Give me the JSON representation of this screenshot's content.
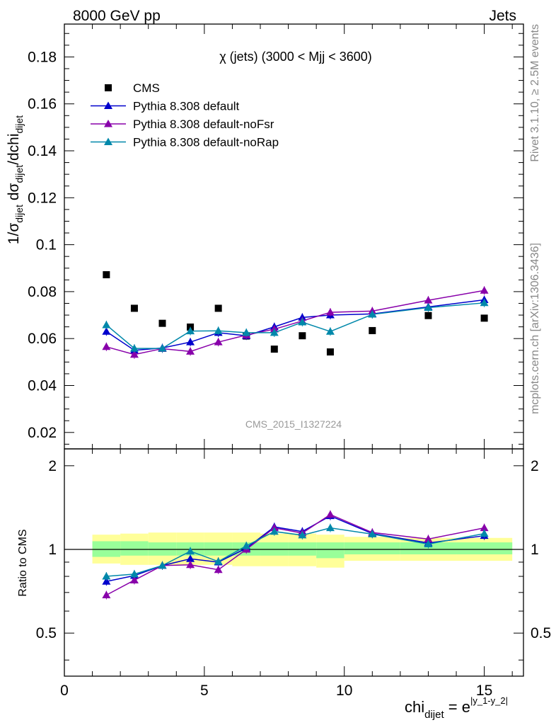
{
  "header": {
    "left": "8000 GeV pp",
    "right": "Jets"
  },
  "side_labels": {
    "rivet": "Rivet 3.1.10, ≥ 2.5M events",
    "mcplots": "mcplots.cern.ch [arXiv:1306.3436]"
  },
  "watermark": "CMS_2015_I1327224",
  "colors": {
    "cms": "#000000",
    "default": "#0000cc",
    "noFsr": "#8800aa",
    "noRap": "#0088aa",
    "band_inner": "#99ff99",
    "band_outer": "#ffff99"
  },
  "chart_data": [
    {
      "type": "scatter",
      "panel": "main",
      "title": "χ (jets) (3000 < Mjj < 3600)",
      "ylabel": "1/σdijet dσdijet/dchidijet",
      "xlim": [
        0,
        16.4
      ],
      "ylim": [
        0.013,
        0.194
      ],
      "yticks": [
        0.02,
        0.04,
        0.06,
        0.08,
        0.1,
        0.12,
        0.14,
        0.16,
        0.18
      ],
      "ytick_labels": [
        "0.02",
        "0.04",
        "0.06",
        "0.08",
        "0.1",
        "0.12",
        "0.14",
        "0.16",
        "0.18"
      ],
      "x": [
        1.5,
        2.5,
        3.5,
        4.5,
        5.5,
        6.5,
        7.5,
        8.5,
        9.5,
        11,
        13,
        15
      ],
      "legend": {
        "placement": "top-left"
      },
      "series": [
        {
          "name": "CMS",
          "key": "cms",
          "marker": "square",
          "values": [
            0.0872,
            0.0729,
            0.0665,
            0.0649,
            0.0729,
            0.0611,
            0.0555,
            0.0612,
            0.0543,
            0.0634,
            0.0698,
            0.0687
          ]
        },
        {
          "name": "Pythia 8.308 default",
          "key": "default",
          "marker": "triangle",
          "values": [
            0.063,
            0.055,
            0.056,
            0.0585,
            0.0625,
            0.0612,
            0.065,
            0.069,
            0.07,
            0.0705,
            0.0735,
            0.0765
          ]
        },
        {
          "name": "Pythia 8.308 default-noFsr",
          "key": "noFsr",
          "marker": "triangle",
          "values": [
            0.0565,
            0.0532,
            0.0557,
            0.0545,
            0.0585,
            0.0615,
            0.064,
            0.0675,
            0.0712,
            0.0717,
            0.0763,
            0.0805
          ]
        },
        {
          "name": "Pythia 8.308 default-noRap",
          "key": "noRap",
          "marker": "triangle",
          "values": [
            0.0658,
            0.0558,
            0.0558,
            0.0632,
            0.0633,
            0.0625,
            0.0625,
            0.067,
            0.063,
            0.0703,
            0.0732,
            0.0752
          ]
        }
      ]
    },
    {
      "type": "line",
      "panel": "ratio",
      "ylabel": "Ratio to CMS",
      "xlabel": "chidijet = e|y_1-y_2|",
      "xlim": [
        0,
        16.4
      ],
      "ylim": [
        0.35,
        2.3
      ],
      "yticks": [
        0.5,
        1,
        2
      ],
      "ytick_labels": [
        "0.5",
        "1",
        "2"
      ],
      "xticks": [
        0,
        5,
        10,
        15
      ],
      "xtick_labels": [
        "0",
        "5",
        "10",
        "15"
      ],
      "x": [
        1.5,
        2.5,
        3.5,
        4.5,
        5.5,
        6.5,
        7.5,
        8.5,
        9.5,
        11,
        13,
        15
      ],
      "bins": [
        [
          1,
          2
        ],
        [
          2,
          3
        ],
        [
          3,
          4
        ],
        [
          4,
          5
        ],
        [
          5,
          6
        ],
        [
          6,
          7
        ],
        [
          7,
          8
        ],
        [
          8,
          9
        ],
        [
          9,
          10
        ],
        [
          10,
          12
        ],
        [
          12,
          14
        ],
        [
          14,
          16
        ]
      ],
      "band_inner": [
        [
          0.94,
          1.07
        ],
        [
          0.95,
          1.07
        ],
        [
          0.95,
          1.06
        ],
        [
          0.95,
          1.06
        ],
        [
          0.95,
          1.06
        ],
        [
          0.95,
          1.06
        ],
        [
          0.95,
          1.06
        ],
        [
          0.95,
          1.06
        ],
        [
          0.93,
          1.06
        ],
        [
          0.96,
          1.06
        ],
        [
          0.96,
          1.06
        ],
        [
          0.96,
          1.06
        ]
      ],
      "band_outer": [
        [
          0.89,
          1.13
        ],
        [
          0.88,
          1.14
        ],
        [
          0.88,
          1.15
        ],
        [
          0.88,
          1.15
        ],
        [
          0.88,
          1.15
        ],
        [
          0.87,
          1.15
        ],
        [
          0.87,
          1.14
        ],
        [
          0.87,
          1.14
        ],
        [
          0.86,
          1.13
        ],
        [
          0.91,
          1.11
        ],
        [
          0.91,
          1.1
        ],
        [
          0.91,
          1.1
        ]
      ],
      "series": [
        {
          "name": "Pythia 8.308 default",
          "key": "default",
          "values": [
            0.767,
            0.805,
            0.875,
            0.925,
            0.9,
            1.01,
            1.205,
            1.16,
            1.32,
            1.14,
            1.055,
            1.12
          ]
        },
        {
          "name": "Pythia 8.308 default-noFsr",
          "key": "noFsr",
          "values": [
            0.685,
            0.775,
            0.875,
            0.88,
            0.845,
            1.0,
            1.195,
            1.145,
            1.335,
            1.15,
            1.09,
            1.195
          ]
        },
        {
          "name": "Pythia 8.308 default-noRap",
          "key": "noRap",
          "values": [
            0.8,
            0.815,
            0.875,
            0.985,
            0.905,
            1.03,
            1.16,
            1.125,
            1.195,
            1.135,
            1.045,
            1.14
          ]
        }
      ]
    }
  ]
}
